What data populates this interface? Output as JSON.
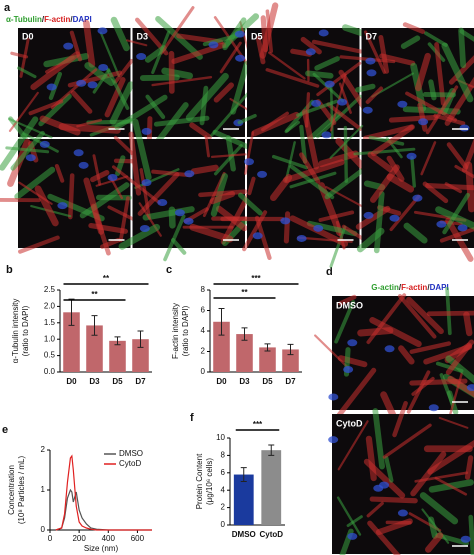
{
  "figure_a": {
    "label": "a",
    "title": [
      {
        "text": "α-Tubulin",
        "color": "#2e9e2e"
      },
      {
        "text": "/",
        "color": "#222222"
      },
      {
        "text": "F-actin",
        "color": "#d62020"
      },
      {
        "text": "/",
        "color": "#222222"
      },
      {
        "text": "DAPI",
        "color": "#2030c0"
      }
    ],
    "images": [
      "D0",
      "D3",
      "D5",
      "D7"
    ]
  },
  "figure_d": {
    "label": "d",
    "title": [
      {
        "text": "G-actin",
        "color": "#2e9e2e"
      },
      {
        "text": "/",
        "color": "#222222"
      },
      {
        "text": "F-actin",
        "color": "#d62020"
      },
      {
        "text": "/",
        "color": "#222222"
      },
      {
        "text": "DAPI",
        "color": "#2030c0"
      }
    ],
    "images": [
      "DMSO",
      "CytoD"
    ]
  },
  "chart_data": [
    {
      "type": "bar",
      "panel": "b",
      "ylabel": [
        "α-Tubulin intensity",
        "(ratio to DAPI)"
      ],
      "categories": [
        "D0",
        "D3",
        "D5",
        "D7"
      ],
      "values": [
        1.82,
        1.42,
        0.95,
        1.0
      ],
      "errors": [
        0.4,
        0.3,
        0.12,
        0.25
      ],
      "colors": [
        "#c0676b",
        "#c0676b",
        "#c0676b",
        "#c0676b"
      ],
      "ylim": [
        0,
        2.5
      ],
      "yticks": [
        {
          "value": 0,
          "label": "0.0"
        },
        0.5,
        {
          "value": 1,
          "label": "1.0"
        },
        1.5,
        {
          "value": 2,
          "label": "2.0"
        },
        2.5
      ],
      "annotations": [
        "**",
        "**"
      ]
    },
    {
      "type": "bar",
      "panel": "c",
      "ylabel": [
        "F-actin intensity",
        "(ratio to DAPI)"
      ],
      "categories": [
        "D0",
        "D3",
        "D5",
        "D7"
      ],
      "values": [
        4.9,
        3.7,
        2.4,
        2.2
      ],
      "errors": [
        1.3,
        0.6,
        0.35,
        0.5
      ],
      "colors": [
        "#c0676b",
        "#c0676b",
        "#c0676b",
        "#c0676b"
      ],
      "ylim": [
        0,
        8
      ],
      "yticks": [
        0,
        2,
        4,
        6,
        8
      ],
      "annotations": [
        "***",
        "**"
      ]
    },
    {
      "type": "line",
      "panel": "e",
      "ylabel": [
        "Concentration",
        "(10⁸ Particles / mL)"
      ],
      "xlabel": "Size (nm)",
      "x": [
        40,
        80,
        100,
        120,
        140,
        150,
        160,
        180,
        200,
        220,
        250,
        280,
        320,
        400,
        700
      ],
      "series": [
        {
          "name": "DMSO",
          "color": "#555555",
          "values": [
            0,
            0.05,
            0.3,
            0.8,
            1.0,
            0.95,
            0.7,
            0.95,
            0.5,
            0.3,
            0.15,
            0.05,
            0.02,
            0,
            0
          ]
        },
        {
          "name": "CytoD",
          "color": "#e02020",
          "values": [
            0,
            0.05,
            0.4,
            1.2,
            1.8,
            1.85,
            1.5,
            0.6,
            0.2,
            0.1,
            0.05,
            0.02,
            0,
            0,
            0
          ]
        }
      ],
      "xlim": [
        0,
        700
      ],
      "xticks": [
        0,
        200,
        400,
        600
      ],
      "ylim": [
        0,
        2
      ],
      "yticks": [
        0,
        1,
        2
      ]
    },
    {
      "type": "bar",
      "panel": "f",
      "ylabel": [
        "Protein Content",
        "(μg/10⁶ cells)"
      ],
      "categories": [
        "DMSO",
        "CytoD"
      ],
      "values": [
        5.8,
        8.6
      ],
      "errors": [
        0.8,
        0.6
      ],
      "colors": [
        "#1a3a9e",
        "#8c8c8c"
      ],
      "ylim": [
        0,
        10
      ],
      "yticks": [
        0,
        2,
        4,
        6,
        8,
        10
      ],
      "annotations": [
        "***"
      ]
    }
  ]
}
